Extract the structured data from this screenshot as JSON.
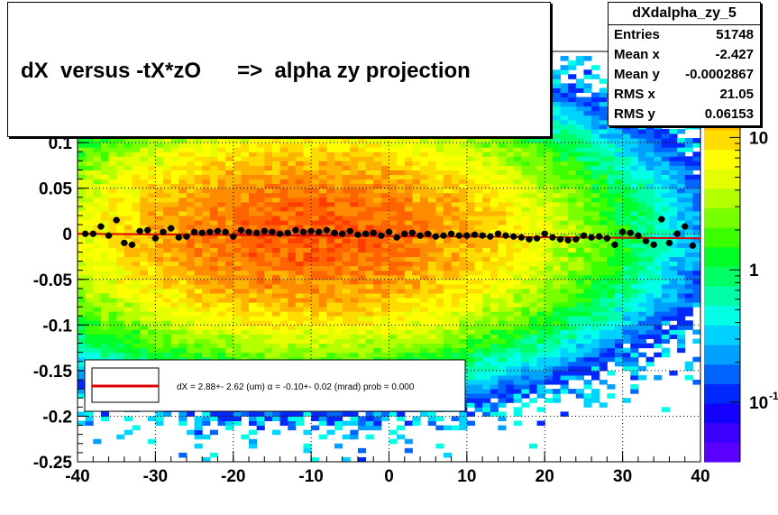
{
  "colors": {
    "fit_line": "#dd0000",
    "points": "#000000"
  },
  "title": "dX  versus -tX*zO      =>  alpha zy projection",
  "stats": {
    "name": "dXdalpha_zy_5",
    "rows": [
      {
        "label": "Entries",
        "value": "51748"
      },
      {
        "label": "Mean x",
        "value": "-2.427"
      },
      {
        "label": "Mean y",
        "value": "-0.0002867"
      },
      {
        "label": "RMS x",
        "value": "21.05"
      },
      {
        "label": "RMS y",
        "value": "0.06153"
      }
    ]
  },
  "chart_data": {
    "type": "heatmap",
    "title": "dX  versus -tX*zO      =>  alpha zy projection",
    "xlabel": "",
    "ylabel": "",
    "xlim": [
      -40,
      40
    ],
    "ylim": [
      -0.25,
      0.2
    ],
    "x_ticks": [
      "-40",
      "-30",
      "-20",
      "-10",
      "0",
      "10",
      "20",
      "30",
      "40"
    ],
    "y_ticks": [
      "-0.25",
      "-0.2",
      "-0.15",
      "-0.1",
      "-0.05",
      "0",
      "0.05",
      "0.1"
    ],
    "z_scale": "log",
    "z_ticks": [
      "10",
      "1",
      "10"
    ],
    "z_tick_exponents": [
      "",
      "",
      "-1"
    ],
    "grid": true,
    "density": {
      "center_x": -10,
      "center_y": 0,
      "sigma_x": 16,
      "sigma_y": 0.06,
      "peak": 30
    },
    "profile_points": {
      "x": [
        -39,
        -38,
        -37,
        -36,
        -35,
        -34,
        -33,
        -32,
        -31,
        -30,
        -29,
        -28,
        -27,
        -26,
        -25,
        -24,
        -23,
        -22,
        -21,
        -20,
        -19,
        -18,
        -17,
        -16,
        -15,
        -14,
        -13,
        -12,
        -11,
        -10,
        -9,
        -8,
        -7,
        -6,
        -5,
        -4,
        -3,
        -2,
        -1,
        0,
        1,
        2,
        3,
        4,
        5,
        6,
        7,
        8,
        9,
        10,
        11,
        12,
        13,
        14,
        15,
        16,
        17,
        18,
        19,
        20,
        21,
        22,
        23,
        24,
        25,
        26,
        27,
        28,
        29,
        30,
        31,
        32,
        33,
        34,
        35,
        36,
        37,
        38,
        39
      ],
      "y": [
        0.0,
        0.0,
        0.008,
        -0.002,
        0.015,
        -0.01,
        -0.012,
        0.003,
        0.004,
        -0.005,
        0.002,
        0.006,
        -0.004,
        -0.003,
        0.002,
        0.001,
        0.002,
        0.003,
        0.002,
        -0.003,
        0.004,
        0.002,
        0.001,
        0.003,
        0.002,
        0.0,
        0.001,
        0.004,
        0.002,
        0.003,
        0.002,
        0.004,
        0.001,
        0.0,
        0.003,
        -0.001,
        0.0,
        0.001,
        -0.002,
        0.002,
        -0.004,
        0.0,
        0.001,
        -0.002,
        0.0,
        -0.003,
        -0.002,
        0.0,
        -0.002,
        -0.002,
        -0.001,
        -0.002,
        -0.003,
        0.0,
        -0.002,
        -0.003,
        -0.004,
        -0.006,
        -0.005,
        0.0,
        -0.004,
        -0.006,
        -0.007,
        -0.006,
        -0.002,
        -0.004,
        -0.003,
        -0.005,
        -0.012,
        0.002,
        0.001,
        -0.002,
        -0.008,
        -0.012,
        0.016,
        -0.01,
        0.0,
        0.008,
        -0.013
      ]
    },
    "fit": {
      "y_at_xmin": 0.0,
      "y_at_xmax": -0.005,
      "label": "dX =   2.88+- 2.62 (um) α =  -0.10+- 0.02 (mrad) prob = 0.000"
    }
  }
}
